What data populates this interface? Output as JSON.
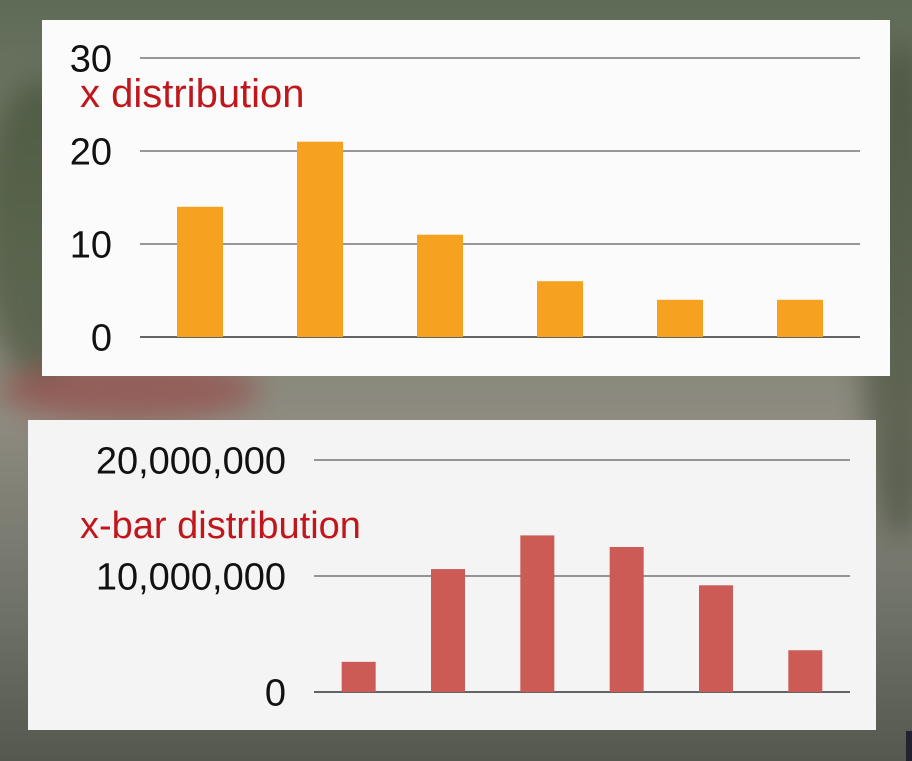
{
  "chart_data": [
    {
      "type": "bar",
      "title": "x distribution",
      "categories": [
        "",
        "",
        "",
        "",
        "",
        ""
      ],
      "values": [
        14,
        21,
        11,
        6,
        4,
        4
      ],
      "ylim": [
        0,
        30
      ],
      "yticks": [
        "0",
        "10",
        "20",
        "30"
      ],
      "grid": true,
      "colors": {
        "bar": "#f6a11f",
        "title": "#c0171c",
        "tick": "#111111",
        "grid": "#333333"
      }
    },
    {
      "type": "bar",
      "title": "x-bar distribution",
      "categories": [
        "",
        "",
        "",
        "",
        "",
        ""
      ],
      "values": [
        2600000,
        10600000,
        13500000,
        12500000,
        9200000,
        3600000
      ],
      "ylim": [
        0,
        20000000
      ],
      "yticks": [
        "0",
        "10,000,000",
        "20,000,000"
      ],
      "grid": true,
      "colors": {
        "bar": "#cd5b55",
        "title": "#c0171c",
        "tick": "#111111",
        "grid": "#333333"
      }
    }
  ]
}
